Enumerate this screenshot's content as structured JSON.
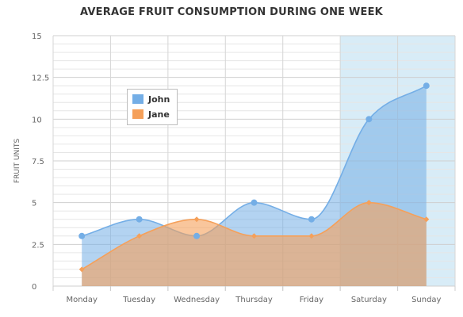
{
  "colors": {
    "john": "#74aee6",
    "jane": "#f5a05a",
    "highlight": "#d8ecf7",
    "grid": "#dddddd",
    "text": "#666666"
  },
  "chart_data": {
    "type": "area",
    "title": "AVERAGE FRUIT CONSUMPTION DURING ONE WEEK",
    "xlabel": "",
    "ylabel": "FRUIT UNITS",
    "categories": [
      "Monday",
      "Tuesday",
      "Wednesday",
      "Thursday",
      "Friday",
      "Saturday",
      "Sunday"
    ],
    "y_ticks": [
      "0",
      "2.5",
      "5",
      "7.5",
      "10",
      "12.5",
      "15"
    ],
    "ylim": [
      0,
      15
    ],
    "grid": true,
    "legend_position": "top-left",
    "highlight_band": [
      "Saturday",
      "Sunday"
    ],
    "series": [
      {
        "name": "John",
        "values": [
          3,
          4,
          3,
          5,
          4,
          10,
          12
        ],
        "marker": "circle"
      },
      {
        "name": "Jane",
        "values": [
          1,
          3,
          4,
          3,
          3,
          5,
          4
        ],
        "marker": "diamond"
      }
    ]
  }
}
